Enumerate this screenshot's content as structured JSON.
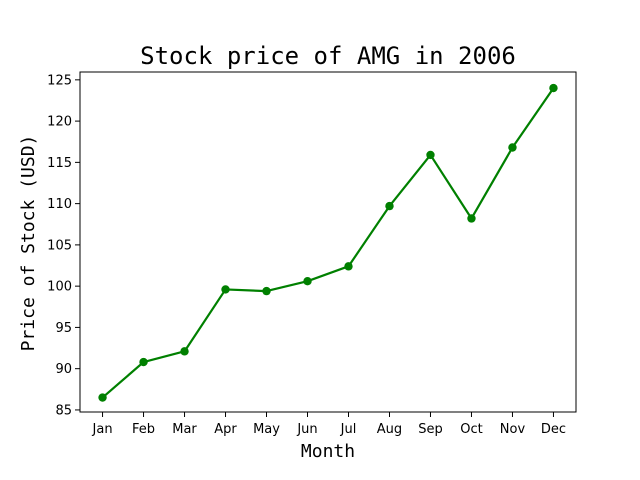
{
  "chart_data": {
    "type": "line",
    "title": "Stock price of AMG in 2006",
    "xlabel": "Month",
    "ylabel": "Price of Stock (USD)",
    "categories": [
      "Jan",
      "Feb",
      "Mar",
      "Apr",
      "May",
      "Jun",
      "Jul",
      "Aug",
      "Sep",
      "Oct",
      "Nov",
      "Dec"
    ],
    "series": [
      {
        "values": [
          86.5,
          90.8,
          92.1,
          99.6,
          99.4,
          100.6,
          102.4,
          109.7,
          115.9,
          108.2,
          116.8,
          124.0
        ],
        "color": "#008000",
        "marker": "circle"
      }
    ],
    "yticks": [
      85,
      90,
      95,
      100,
      105,
      110,
      115,
      120,
      125
    ],
    "ylim": [
      84.75,
      125.95
    ],
    "grid": false,
    "legend": "none"
  }
}
